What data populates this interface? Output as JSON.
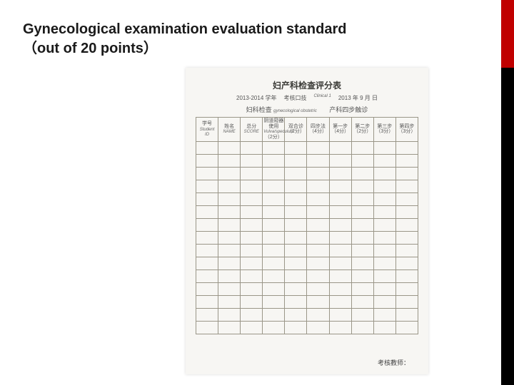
{
  "title": {
    "line1": "Gynecological examination evaluation standard",
    "line2": "（out of 20 points）"
  },
  "form": {
    "main_title": "妇产科检查评分表",
    "year_label": "2013-2014 学年",
    "class_label": "考核口技",
    "date_label": "2013 年 9 月  日",
    "sub_title": "妇科检查",
    "hand_class": "Clinical 1",
    "hand_anno": "gynecological obstetric",
    "footer_label": "考核教师："
  },
  "columns": [
    {
      "zh": "学号",
      "en": "Student ID",
      "pts": ""
    },
    {
      "zh": "姓名",
      "en": "NAME",
      "pts": ""
    },
    {
      "zh": "总分",
      "en": "SCORE",
      "pts": ""
    },
    {
      "zh": "阴道窥器使用",
      "en": "Vulva/speculum",
      "pts": "（2分）"
    },
    {
      "zh": "双合诊",
      "en": "",
      "pts": "（2分）"
    },
    {
      "zh": "四步法",
      "en": "",
      "pts": "（4分）"
    },
    {
      "zh": "第一步",
      "en": "",
      "pts": "（4分）"
    },
    {
      "zh": "第二步",
      "en": "",
      "pts": "（2分）"
    },
    {
      "zh": "第三步",
      "en": "",
      "pts": "（3分）"
    },
    {
      "zh": "第四步",
      "en": "",
      "pts": "（3分）"
    }
  ],
  "group_header_right": "产科四步触诊",
  "blank_rows": 15,
  "colors": {
    "red_bar": "#c00000",
    "black_bar": "#000000",
    "paper_bg": "#f7f6f3",
    "table_border": "#9a9688",
    "title_text": "#1a1a1a"
  }
}
